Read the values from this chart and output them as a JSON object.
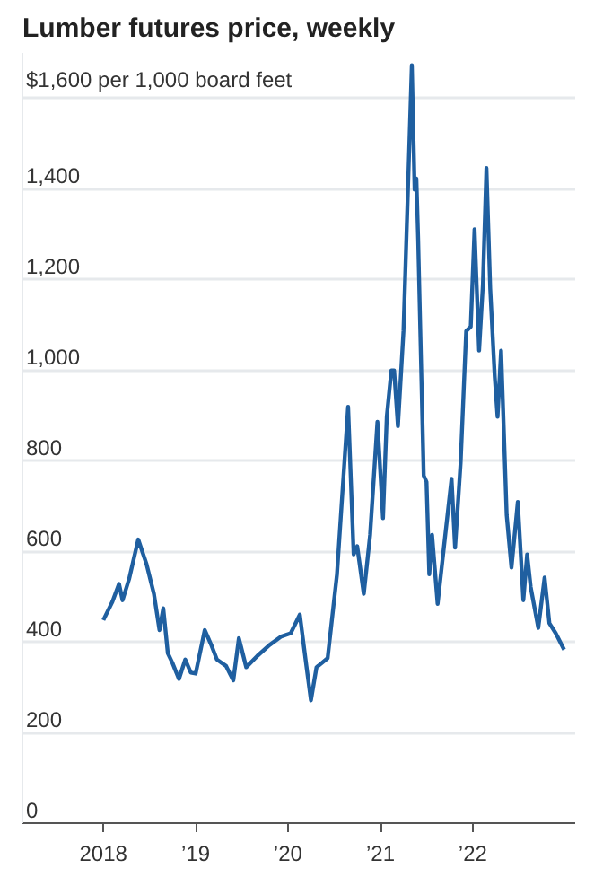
{
  "chart_data": {
    "type": "line",
    "title": "Lumber futures price, weekly",
    "x": [
      "2018-01-01",
      "2018-02-06",
      "2018-03-04",
      "2018-03-18",
      "2018-04-13",
      "2018-05-19",
      "2018-06-21",
      "2018-07-20",
      "2018-08-11",
      "2018-08-26",
      "2018-09-13",
      "2018-10-01",
      "2018-10-27",
      "2018-11-21",
      "2018-12-13",
      "2019-01-01",
      "2019-02-06",
      "2019-03-04",
      "2019-03-26",
      "2019-05-01",
      "2019-05-30",
      "2019-06-21",
      "2019-07-20",
      "2019-09-02",
      "2019-10-20",
      "2019-12-06",
      "2020-01-12",
      "2020-02-17",
      "2020-03-14",
      "2020-04-01",
      "2020-04-23",
      "2020-04-30",
      "2020-06-06",
      "2020-07-13",
      "2020-08-26",
      "2020-09-17",
      "2020-10-01",
      "2020-10-27",
      "2020-11-21",
      "2020-12-20",
      "2021-01-11",
      "2021-01-26",
      "2021-02-13",
      "2021-02-24",
      "2021-03-11",
      "2021-04-02",
      "2021-04-20",
      "2021-05-05",
      "2021-05-16",
      "2021-05-23",
      "2021-05-30",
      "2021-06-21",
      "2021-07-02",
      "2021-07-13",
      "2021-07-24",
      "2021-08-15",
      "2021-09-13",
      "2021-10-09",
      "2021-10-23",
      "2021-11-14",
      "2021-12-06",
      "2021-12-24",
      "2022-01-08",
      "2022-01-26",
      "2022-02-10",
      "2022-02-24",
      "2022-03-11",
      "2022-03-29",
      "2022-04-09",
      "2022-04-23",
      "2022-05-15",
      "2022-06-03",
      "2022-06-28",
      "2022-07-20",
      "2022-08-04",
      "2022-08-18",
      "2022-09-17",
      "2022-10-12",
      "2022-10-31",
      "2022-11-25",
      "2022-12-28"
    ],
    "series": [
      {
        "color": "#1f5fa0",
        "values": [
          448,
          489,
          528,
          492,
          539,
          626,
          571,
          506,
          426,
          474,
          375,
          354,
          318,
          361,
          332,
          330,
          426,
          393,
          361,
          347,
          315,
          408,
          344,
          369,
          393,
          412,
          419,
          460,
          347,
          271,
          344,
          347,
          364,
          549,
          919,
          593,
          611,
          506,
          636,
          886,
          673,
          897,
          999,
          999,
          876,
          1086,
          1405,
          1673,
          1398,
          1423,
          1289,
          767,
          753,
          549,
          636,
          484,
          630,
          760,
          608,
          796,
          1086,
          1096,
          1311,
          1043,
          1188,
          1446,
          1180,
          984,
          897,
          1043,
          680,
          564,
          709,
          492,
          593,
          521,
          431,
          542,
          441,
          419,
          383
        ]
      }
    ],
    "xlim": [
      "2017-02-15",
      "2023-02-10"
    ],
    "xticks": [
      {
        "value": "2018-01-01",
        "label": "2018"
      },
      {
        "value": "2019-01-01",
        "label": "’19"
      },
      {
        "value": "2020-01-01",
        "label": "’20"
      },
      {
        "value": "2021-01-01",
        "label": "’21"
      },
      {
        "value": "2022-01-01",
        "label": "’22"
      }
    ],
    "ylim": [
      0,
      1700
    ],
    "yticks": [
      0,
      200,
      400,
      600,
      800,
      {
        "value": 1000,
        "label": "1,000"
      },
      {
        "value": 1200,
        "label": "1,200"
      },
      {
        "value": 1400,
        "label": "1,400"
      },
      {
        "value": 1600,
        "label": "$1,600 per 1,000 board feet"
      }
    ],
    "grid": "y",
    "marker": "none",
    "line_style": "solid"
  }
}
